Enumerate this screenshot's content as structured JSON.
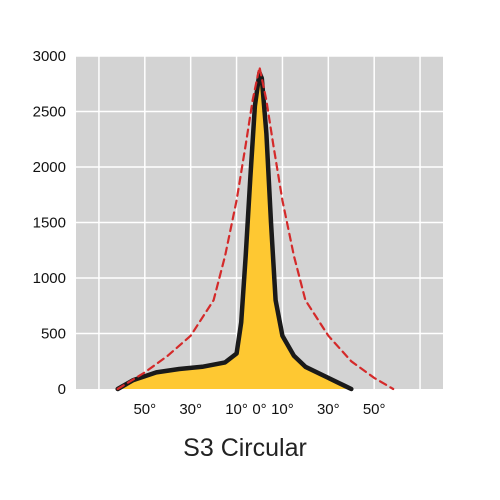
{
  "chart_data": {
    "type": "area",
    "title": "S3 Circular",
    "xlabel": "",
    "ylabel": "",
    "xlim": [
      -80,
      80
    ],
    "ylim": [
      0,
      3000
    ],
    "grid": true,
    "y_ticks": [
      {
        "value": 0,
        "label": "0"
      },
      {
        "value": 500,
        "label": "500"
      },
      {
        "value": 1000,
        "label": "1000"
      },
      {
        "value": 1500,
        "label": "1500"
      },
      {
        "value": 2000,
        "label": "2000"
      },
      {
        "value": 2500,
        "label": "2500"
      },
      {
        "value": 3000,
        "label": "3000"
      }
    ],
    "x_ticks": [
      {
        "value": -50,
        "label": "50°"
      },
      {
        "value": -30,
        "label": "30°"
      },
      {
        "value": -10,
        "label": "10°"
      },
      {
        "value": 0,
        "label": "0°"
      },
      {
        "value": 10,
        "label": "10°"
      },
      {
        "value": 30,
        "label": "30°"
      },
      {
        "value": 50,
        "label": "50°"
      }
    ],
    "x_grid": [
      -70,
      -50,
      -30,
      -10,
      10,
      30,
      50,
      70
    ],
    "series": [
      {
        "style": "solid-filled",
        "line_color": "#1a1a1a",
        "fill_color": "#fec832",
        "points": [
          [
            -61.8,
            0
          ],
          [
            -55,
            80
          ],
          [
            -45,
            150
          ],
          [
            -35,
            180
          ],
          [
            -25,
            200
          ],
          [
            -15,
            240
          ],
          [
            -10,
            320
          ],
          [
            -8,
            600
          ],
          [
            -6,
            1200
          ],
          [
            -4,
            1900
          ],
          [
            -2,
            2550
          ],
          [
            0,
            2850
          ],
          [
            1,
            2800
          ],
          [
            3,
            2300
          ],
          [
            5,
            1500
          ],
          [
            7,
            800
          ],
          [
            10,
            480
          ],
          [
            15,
            300
          ],
          [
            20,
            200
          ],
          [
            30,
            100
          ],
          [
            37,
            30
          ],
          [
            40,
            0
          ]
        ]
      },
      {
        "style": "dashed",
        "line_color": "#d42a2a",
        "points": [
          [
            -61.8,
            0
          ],
          [
            -50,
            150
          ],
          [
            -40,
            300
          ],
          [
            -30,
            480
          ],
          [
            -20,
            800
          ],
          [
            -15,
            1200
          ],
          [
            -10,
            1700
          ],
          [
            -6,
            2200
          ],
          [
            -3,
            2600
          ],
          [
            0,
            2900
          ],
          [
            3,
            2600
          ],
          [
            6,
            2200
          ],
          [
            10,
            1700
          ],
          [
            15,
            1200
          ],
          [
            20,
            800
          ],
          [
            30,
            480
          ],
          [
            40,
            250
          ],
          [
            50,
            100
          ],
          [
            55,
            40
          ],
          [
            58.3,
            0
          ]
        ]
      }
    ]
  }
}
